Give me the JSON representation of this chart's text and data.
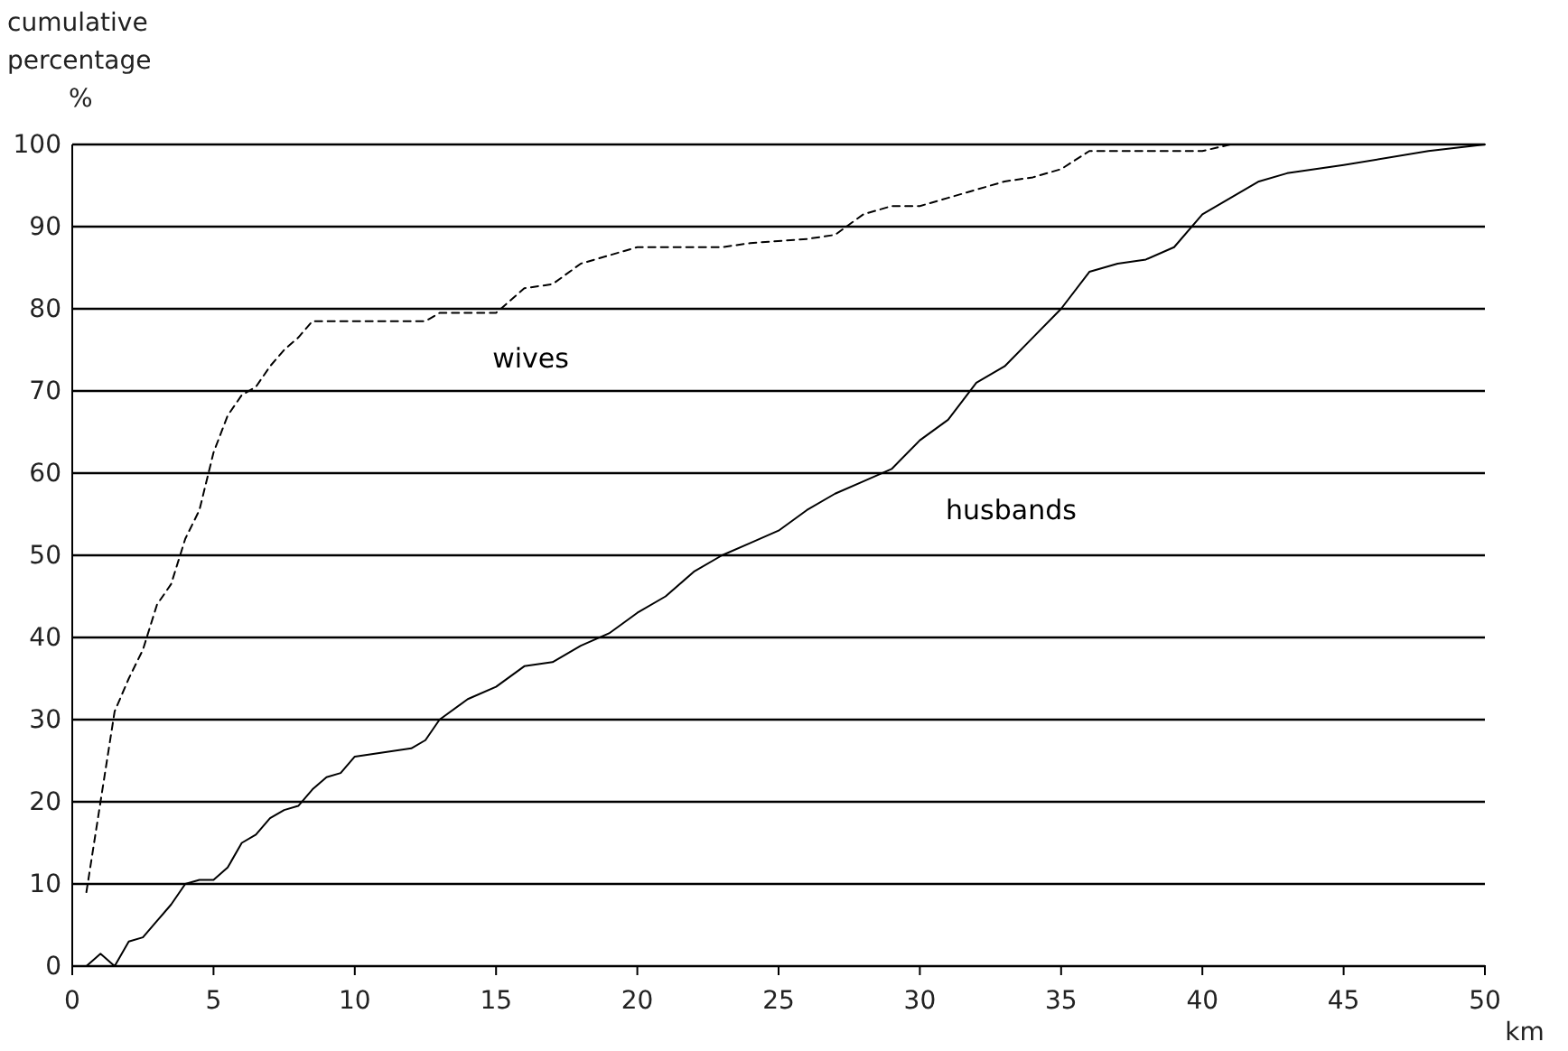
{
  "chart_data": {
    "type": "line",
    "xlabel": "km",
    "ylabel": "cumulative percentage %",
    "xlim": [
      0,
      50
    ],
    "xticks": [
      0,
      5,
      10,
      15,
      20,
      25,
      30,
      35,
      40,
      45,
      50
    ],
    "ylim": [
      0,
      100
    ],
    "yticks": [
      0,
      10,
      20,
      30,
      40,
      50,
      60,
      70,
      80,
      90,
      100
    ],
    "grid": "y",
    "marker": "none",
    "series": [
      {
        "name": "wives",
        "color": "#000000",
        "line_style": "dashed",
        "x": [
          0.5,
          1,
          1.5,
          2,
          2.5,
          3,
          3.5,
          4,
          4.5,
          5,
          5.5,
          6,
          6.5,
          7,
          7.5,
          8,
          8.5,
          12.5,
          13,
          15,
          16,
          17,
          18,
          19,
          20,
          22,
          23,
          24,
          26,
          27,
          28,
          29,
          30,
          31,
          32,
          33,
          34,
          35,
          36,
          40,
          41
        ],
        "values": [
          9,
          20,
          31,
          35,
          38.5,
          44,
          46.5,
          52,
          55.5,
          62.5,
          67,
          69.5,
          70.5,
          73,
          75,
          76.5,
          78.5,
          78.5,
          79.5,
          79.5,
          82.5,
          83,
          85.5,
          86.5,
          87.5,
          87.5,
          87.5,
          88,
          88.5,
          89,
          91.5,
          92.5,
          92.5,
          93.5,
          94.5,
          95.5,
          96,
          97,
          99.2,
          99.2,
          100
        ]
      },
      {
        "name": "husbands",
        "color": "#000000",
        "line_style": "solid",
        "x": [
          0.5,
          1,
          1.5,
          2,
          2.5,
          3,
          3.5,
          4,
          4.5,
          5,
          5.5,
          6,
          6.5,
          7,
          7.5,
          8,
          8.5,
          9,
          9.5,
          10,
          12,
          12.5,
          13,
          14,
          15,
          16,
          17,
          18,
          19,
          20,
          21,
          22,
          23,
          24,
          25,
          26,
          27,
          28,
          29,
          30,
          31,
          32,
          33,
          34,
          35,
          36,
          37,
          38,
          39,
          40,
          41,
          42,
          43,
          45,
          48,
          50
        ],
        "values": [
          0,
          1.5,
          0,
          3,
          3.5,
          5.5,
          7.5,
          10,
          10.5,
          10.5,
          12,
          15,
          16,
          18,
          19,
          19.5,
          21.5,
          23,
          23.5,
          25.5,
          26.5,
          27.5,
          30,
          32.5,
          34,
          36.5,
          37,
          39,
          40.5,
          43,
          45,
          48,
          50,
          51.5,
          53,
          55.5,
          57.5,
          59,
          60.5,
          64,
          66.5,
          71,
          73,
          76.5,
          80,
          84.5,
          85.5,
          86,
          87.5,
          91.5,
          93.5,
          95.5,
          96.5,
          97.5,
          99.2,
          100
        ]
      }
    ]
  }
}
